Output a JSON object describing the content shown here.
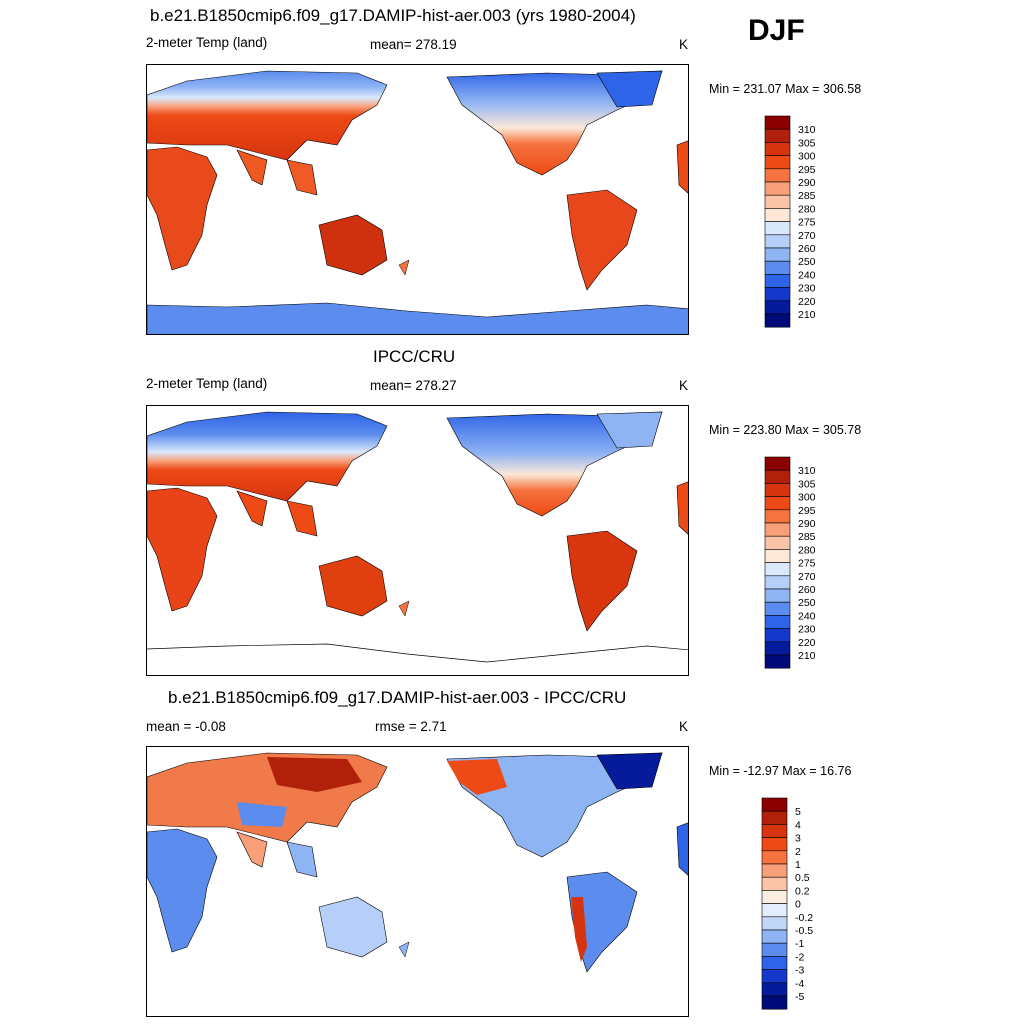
{
  "season": "DJF",
  "panels": [
    {
      "id": "model",
      "title": "b.e21.B1850cmip6.f09_g17.DAMIP-hist-aer.003 (yrs 1980-2004)",
      "left_label": "2-meter Temp (land)",
      "center_label": "mean= 278.19",
      "units": "K",
      "minmax": "Min = 231.07 Max = 306.58",
      "colorbar_labels": [
        "310",
        "305",
        "300",
        "295",
        "290",
        "285",
        "280",
        "275",
        "270",
        "260",
        "250",
        "240",
        "230",
        "220",
        "210"
      ],
      "colorbar_colors": [
        "#8b0000",
        "#b0200a",
        "#d6340f",
        "#ee4a16",
        "#f5733f",
        "#f9a07a",
        "#fbc4a8",
        "#fde8d8",
        "#dae8fb",
        "#b5cff8",
        "#8fb4f4",
        "#5b8cee",
        "#2e64e8",
        "#1438cc",
        "#061a9c",
        "#000a78"
      ]
    },
    {
      "id": "obs",
      "title": "IPCC/CRU",
      "left_label": "2-meter Temp (land)",
      "center_label": "mean= 278.27",
      "units": "K",
      "minmax": "Min = 223.80 Max = 305.78",
      "colorbar_labels": [
        "310",
        "305",
        "300",
        "295",
        "290",
        "285",
        "280",
        "275",
        "270",
        "260",
        "250",
        "240",
        "230",
        "220",
        "210"
      ],
      "colorbar_colors": [
        "#8b0000",
        "#b0200a",
        "#d6340f",
        "#ee4a16",
        "#f5733f",
        "#f9a07a",
        "#fbc4a8",
        "#fde8d8",
        "#dae8fb",
        "#b5cff8",
        "#8fb4f4",
        "#5b8cee",
        "#2e64e8",
        "#1438cc",
        "#061a9c",
        "#000a78"
      ]
    },
    {
      "id": "diff",
      "title": "b.e21.B1850cmip6.f09_g17.DAMIP-hist-aer.003 - IPCC/CRU",
      "left_label": "mean =  -0.08",
      "center_label": "rmse =   2.71",
      "units": "K",
      "minmax": "Min = -12.97 Max =  16.76",
      "colorbar_labels": [
        "5",
        "4",
        "3",
        "2",
        "1",
        "0.5",
        "0.2",
        "0",
        "-0.2",
        "-0.5",
        "-1",
        "-2",
        "-3",
        "-4",
        "-5"
      ],
      "colorbar_colors": [
        "#8b0000",
        "#b0200a",
        "#d6340f",
        "#ee4a16",
        "#f5733f",
        "#f9a07a",
        "#fbc4a8",
        "#fdeee2",
        "#e4edfb",
        "#c2d6f8",
        "#8fb4f4",
        "#5b8cee",
        "#2e64e8",
        "#1438cc",
        "#061a9c",
        "#000a78"
      ]
    }
  ]
}
